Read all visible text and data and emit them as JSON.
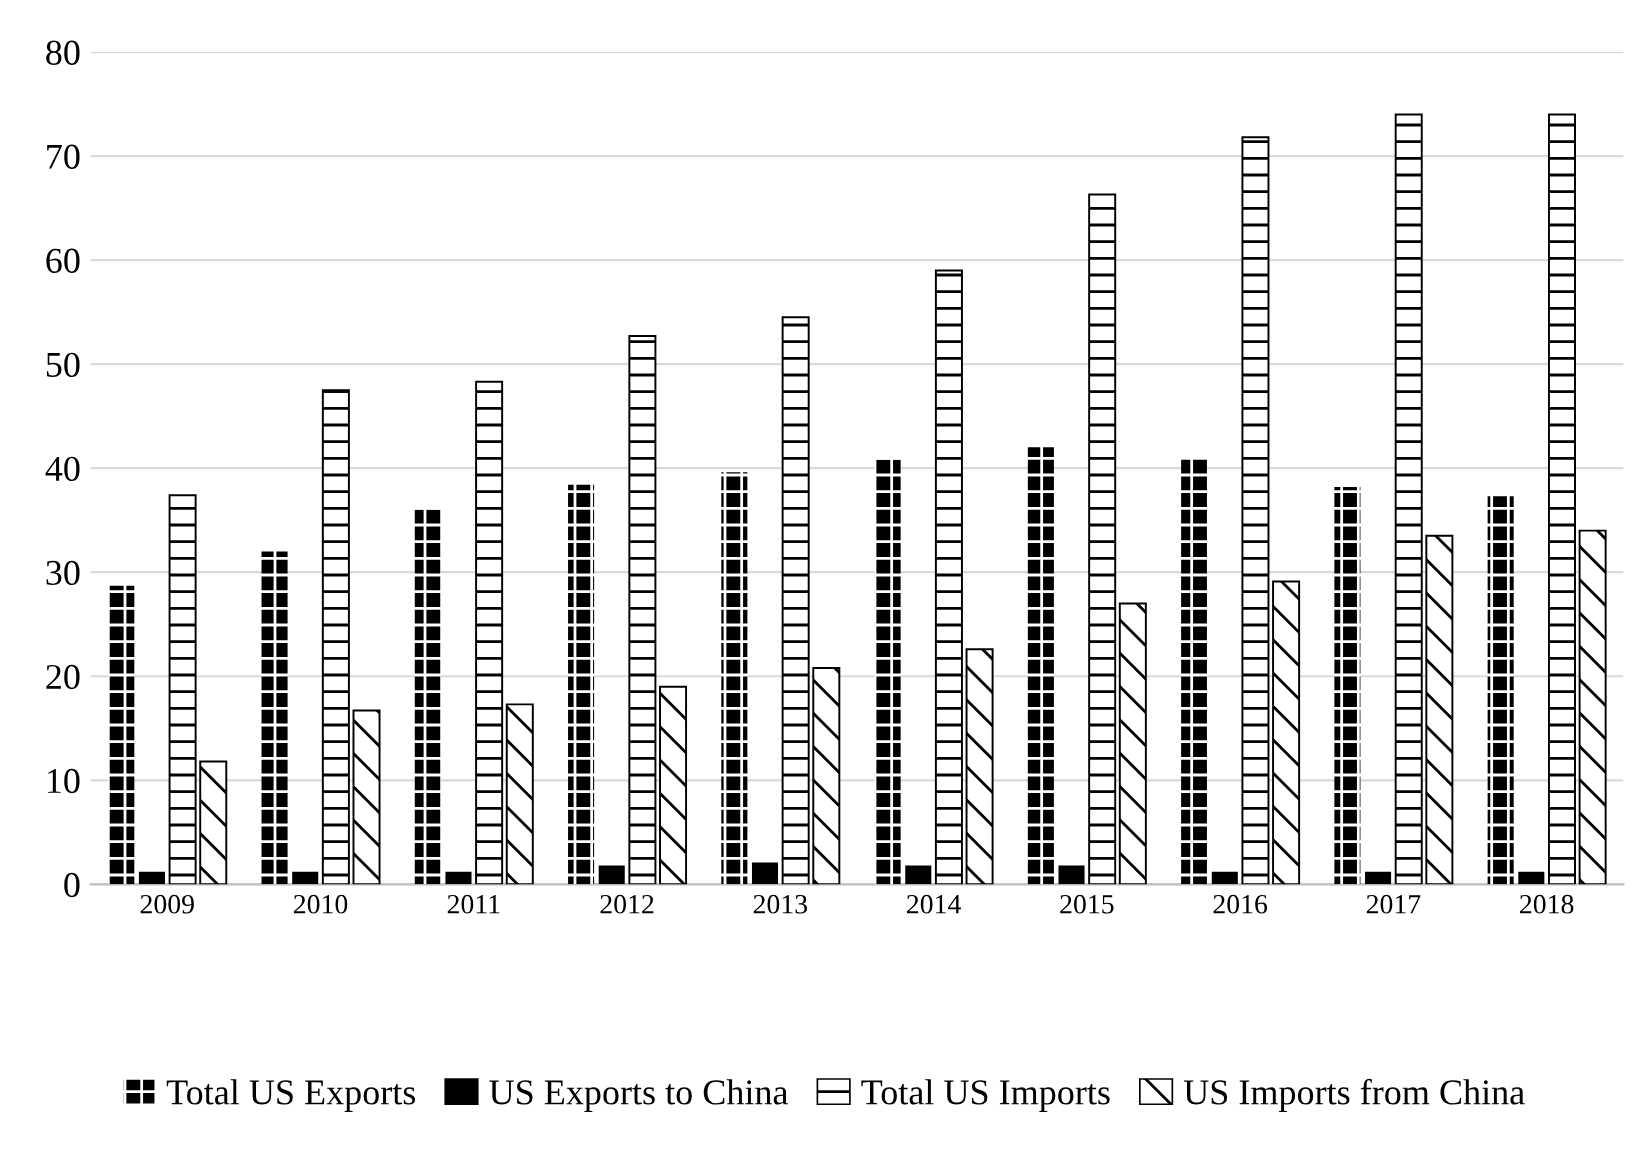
{
  "chart_data": {
    "type": "bar",
    "categories": [
      "2009",
      "2010",
      "2011",
      "2012",
      "2013",
      "2014",
      "2015",
      "2016",
      "2017",
      "2018"
    ],
    "series": [
      {
        "name": "Total US Exports",
        "color": "#000000",
        "values": [
          28.7,
          32.0,
          36.0,
          38.4,
          39.6,
          40.8,
          42.0,
          41.0,
          38.2,
          37.3
        ]
      },
      {
        "name": "US Exports to China",
        "color": "#000000",
        "values": [
          1.2,
          1.2,
          1.2,
          1.8,
          2.1,
          1.8,
          1.8,
          1.2,
          1.2,
          1.2
        ]
      },
      {
        "name": "Total US Imports",
        "color": "#ffffff",
        "values": [
          37.4,
          47.5,
          48.3,
          52.7,
          54.5,
          59.0,
          66.3,
          71.8,
          74.0,
          74.0
        ]
      },
      {
        "name": "US Imports from China",
        "color": "#ffffff",
        "values": [
          11.8,
          16.7,
          17.3,
          19.0,
          20.8,
          22.6,
          27.0,
          29.1,
          33.5,
          34.0
        ]
      }
    ],
    "ylim": [
      0,
      80
    ],
    "yticks": [
      0,
      10,
      20,
      30,
      40,
      50,
      60,
      70,
      80
    ],
    "grid": "y",
    "legend": "bottom"
  }
}
